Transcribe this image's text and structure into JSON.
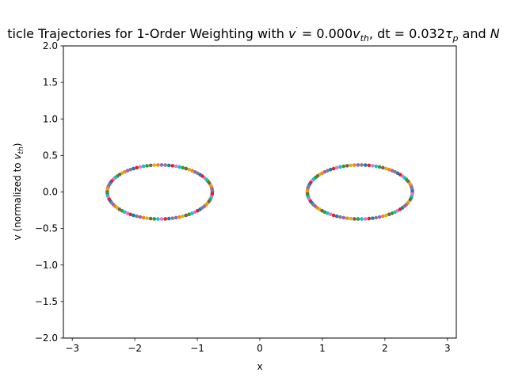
{
  "chart_data": {
    "type": "scatter",
    "title": "ticle Trajectories for 1-Order Weighting with v′ = 0.000v_th, dt = 0.032τ_p and N",
    "title_parts": {
      "t1": "ticle Trajectories for 1-Order Weighting with ",
      "v": "v",
      "prime": "′",
      "t2": " = 0.000",
      "vth_v": "v",
      "vth_sub": "th",
      "t3": ", dt = 0.032",
      "tau": "τ",
      "tau_sub": "p",
      "t4": " and ",
      "N": "N"
    },
    "xlabel": "x",
    "ylabel_parts": {
      "pre": "v (normalized to ",
      "v": "v",
      "sub": "th",
      "post": ")"
    },
    "xlim": [
      -3.142,
      3.142
    ],
    "ylim": [
      -2.0,
      2.0
    ],
    "xticks": [
      -3,
      -2,
      -1,
      0,
      1,
      2,
      3
    ],
    "xtick_labels": [
      "−3",
      "−2",
      "−1",
      "0",
      "1",
      "2",
      "3"
    ],
    "yticks": [
      -2.0,
      -1.5,
      -1.0,
      -0.5,
      0.0,
      0.5,
      1.0,
      1.5,
      2.0
    ],
    "ytick_labels": [
      "−2.0",
      "−1.5",
      "−1.0",
      "−0.5",
      "0.0",
      "0.5",
      "1.0",
      "1.5",
      "2.0"
    ],
    "grid": false,
    "marker_colors": [
      "#1f77b4",
      "#ff7f0e",
      "#2ca02c",
      "#d62728",
      "#9467bd",
      "#8c564b",
      "#e377c2",
      "#7f7f7f",
      "#bcbd22",
      "#17becf"
    ],
    "trajectories": [
      {
        "center_x": -1.6,
        "center_v": 0.0,
        "radius_x": 0.84,
        "radius_v": 0.37,
        "points": 90
      },
      {
        "center_x": 1.6,
        "center_v": 0.0,
        "radius_x": 0.84,
        "radius_v": 0.37,
        "points": 90
      }
    ]
  }
}
